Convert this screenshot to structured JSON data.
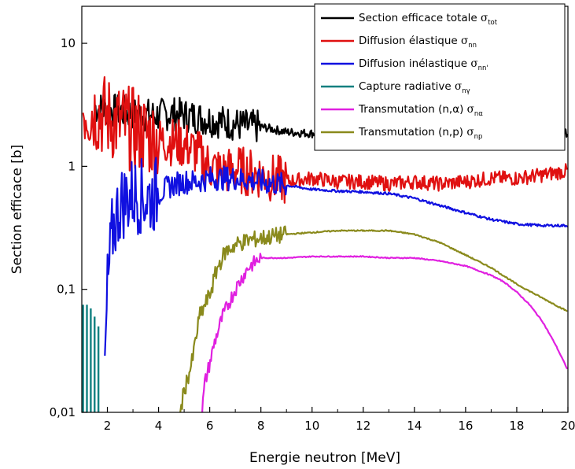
{
  "chart_data": {
    "type": "line",
    "xlabel": "Energie neutron [MeV]",
    "ylabel": "Section efficace [b]",
    "xlim": [
      1,
      20
    ],
    "ylim": [
      0.01,
      20
    ],
    "y_scale": "log",
    "grid": false,
    "legend_position": "top-right",
    "x_ticks": [
      2,
      4,
      6,
      8,
      10,
      12,
      14,
      16,
      18,
      20
    ],
    "x_tick_labels": [
      "2",
      "4",
      "6",
      "8",
      "10",
      "12",
      "14",
      "16",
      "18",
      "20"
    ],
    "y_ticks": [
      0.01,
      0.1,
      1,
      10
    ],
    "y_tick_labels": [
      "0,01",
      "0,1",
      "1",
      "10"
    ],
    "series": [
      {
        "name": "Section efficace totale",
        "symbol": "σ",
        "subscript": "tot",
        "color": "#000000",
        "x": [
          1.5,
          2,
          2.5,
          3,
          3.5,
          4,
          4.5,
          5,
          5.5,
          6,
          6.5,
          7,
          7.5,
          8,
          9,
          10,
          11,
          12,
          13,
          14,
          15,
          16,
          17,
          18,
          19,
          20
        ],
        "y": [
          3.0,
          2.9,
          2.8,
          2.7,
          2.6,
          2.6,
          2.7,
          2.6,
          2.5,
          2.4,
          2.3,
          2.2,
          2.1,
          2.1,
          1.9,
          1.85,
          1.85,
          1.85,
          1.85,
          1.85,
          1.85,
          1.85,
          1.85,
          1.85,
          1.8,
          1.85
        ]
      },
      {
        "name": "Diffusion élastique",
        "symbol": "σ",
        "subscript": "nn",
        "color": "#e01010",
        "x": [
          1.05,
          1.5,
          2,
          2.5,
          3,
          3.5,
          4,
          4.5,
          5,
          5.5,
          6,
          6.5,
          7,
          7.5,
          8,
          9,
          10,
          11,
          12,
          13,
          14,
          15,
          16,
          17,
          18,
          19,
          20
        ],
        "y": [
          3.0,
          2.8,
          2.5,
          2.2,
          2.0,
          1.8,
          1.6,
          1.6,
          1.5,
          1.3,
          1.0,
          0.9,
          0.95,
          0.9,
          0.85,
          0.75,
          0.8,
          0.75,
          0.75,
          0.72,
          0.75,
          0.72,
          0.75,
          0.8,
          0.8,
          0.85,
          0.92
        ]
      },
      {
        "name": "Diffusion inélastique",
        "symbol": "σ",
        "subscript": "nn'",
        "color": "#1010e0",
        "x": [
          1.9,
          2,
          2.2,
          2.5,
          3,
          3.5,
          4,
          4.5,
          5,
          5.5,
          6,
          7,
          8,
          9,
          10,
          11,
          12,
          13,
          14,
          15,
          16,
          17,
          18,
          19,
          20
        ],
        "y": [
          0.02,
          0.1,
          0.3,
          0.5,
          0.6,
          0.55,
          0.6,
          0.7,
          0.75,
          0.75,
          0.8,
          0.8,
          0.75,
          0.7,
          0.65,
          0.63,
          0.62,
          0.6,
          0.55,
          0.48,
          0.42,
          0.37,
          0.34,
          0.33,
          0.33
        ]
      },
      {
        "name": "Capture radiative",
        "symbol": "σ",
        "subscript": "nγ",
        "color": "#108080",
        "x": [
          1.05,
          1.2,
          1.35,
          1.5,
          1.65
        ],
        "y": [
          0.075,
          0.075,
          0.07,
          0.06,
          0.05
        ]
      },
      {
        "name": "Transmutation (n,α)",
        "symbol": "σ",
        "subscript": "nα",
        "color": "#e020e0",
        "x": [
          5.7,
          5.8,
          6,
          6.2,
          6.5,
          7,
          7.5,
          8,
          9,
          10,
          11,
          12,
          13,
          14,
          15,
          16,
          17,
          17.5,
          18,
          18.5,
          19,
          19.5,
          20
        ],
        "y": [
          0.01,
          0.017,
          0.025,
          0.038,
          0.06,
          0.1,
          0.15,
          0.18,
          0.18,
          0.185,
          0.185,
          0.185,
          0.18,
          0.18,
          0.17,
          0.155,
          0.13,
          0.115,
          0.095,
          0.075,
          0.055,
          0.036,
          0.022
        ]
      },
      {
        "name": "Transmutation (n,p)",
        "symbol": "σ",
        "subscript": "np",
        "color": "#8a8a1c",
        "x": [
          4.85,
          5,
          5.3,
          5.6,
          6,
          6.3,
          6.6,
          7,
          7.5,
          8,
          8.5,
          9,
          10,
          11,
          12,
          13,
          14,
          15,
          16,
          17,
          18,
          19,
          20
        ],
        "y": [
          0.01,
          0.015,
          0.025,
          0.06,
          0.09,
          0.15,
          0.2,
          0.23,
          0.25,
          0.26,
          0.27,
          0.28,
          0.29,
          0.3,
          0.3,
          0.3,
          0.28,
          0.24,
          0.19,
          0.15,
          0.11,
          0.085,
          0.066
        ]
      }
    ]
  }
}
